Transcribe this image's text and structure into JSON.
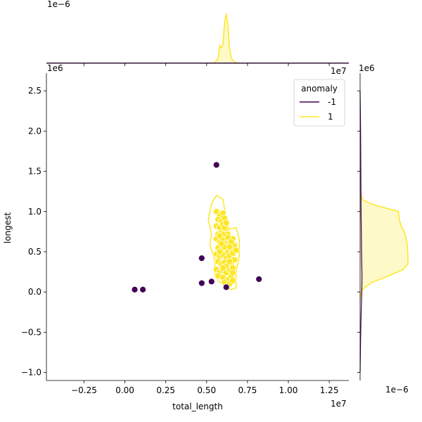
{
  "chart_data": {
    "type": "scatter",
    "kind": "seaborn jointplot with marginal KDE",
    "xlabel": "total_length",
    "ylabel": "longest",
    "x_offset_label": "1e7",
    "y_offset_label": "1e6",
    "top_marginal_offset_label": "1e−6",
    "top_marginal_x_offset_label": "1e7",
    "right_marginal_offset_label": "1e−6",
    "right_marginal_y_offset_label": "1e6",
    "xlim": [
      -0.48,
      1.37
    ],
    "ylim": [
      -1.1,
      2.72
    ],
    "x_ticks": [
      -0.25,
      0.0,
      0.25,
      0.5,
      0.75,
      1.0,
      1.25
    ],
    "x_tick_labels": [
      "−0.25",
      "0.00",
      "0.25",
      "0.50",
      "0.75",
      "1.00",
      "1.25"
    ],
    "y_ticks": [
      -1.0,
      -0.5,
      0.0,
      0.5,
      1.0,
      1.5,
      2.0,
      2.5
    ],
    "y_tick_labels": [
      "−1.0",
      "−0.5",
      "0.0",
      "0.5",
      "1.0",
      "1.5",
      "2.0",
      "2.5"
    ],
    "grid": false,
    "legend": {
      "title": "anomaly",
      "placement": "top-right",
      "entries": [
        {
          "label": "-1",
          "color": "#440154"
        },
        {
          "label": "1",
          "color": "#fde725"
        }
      ]
    },
    "colors": {
      "anomaly": "#440154",
      "normal": "#fde725",
      "normal_fill": "#fde725"
    },
    "series": [
      {
        "name": "-1",
        "points": [
          [
            0.06,
            0.03
          ],
          [
            0.11,
            0.03
          ],
          [
            0.47,
            0.42
          ],
          [
            0.47,
            0.11
          ],
          [
            0.53,
            0.13
          ],
          [
            0.56,
            1.58
          ],
          [
            0.62,
            0.06
          ],
          [
            0.82,
            0.16
          ]
        ]
      },
      {
        "name": "1",
        "points": [
          [
            0.56,
            1.0
          ],
          [
            0.58,
            0.95
          ],
          [
            0.6,
            0.98
          ],
          [
            0.57,
            0.9
          ],
          [
            0.59,
            0.88
          ],
          [
            0.61,
            0.92
          ],
          [
            0.56,
            0.82
          ],
          [
            0.58,
            0.8
          ],
          [
            0.6,
            0.84
          ],
          [
            0.62,
            0.78
          ],
          [
            0.57,
            0.72
          ],
          [
            0.59,
            0.74
          ],
          [
            0.61,
            0.7
          ],
          [
            0.63,
            0.72
          ],
          [
            0.56,
            0.66
          ],
          [
            0.58,
            0.62
          ],
          [
            0.6,
            0.65
          ],
          [
            0.62,
            0.6
          ],
          [
            0.64,
            0.63
          ],
          [
            0.66,
            0.66
          ],
          [
            0.57,
            0.55
          ],
          [
            0.59,
            0.52
          ],
          [
            0.61,
            0.56
          ],
          [
            0.63,
            0.5
          ],
          [
            0.65,
            0.54
          ],
          [
            0.67,
            0.58
          ],
          [
            0.56,
            0.47
          ],
          [
            0.58,
            0.44
          ],
          [
            0.6,
            0.46
          ],
          [
            0.62,
            0.42
          ],
          [
            0.64,
            0.45
          ],
          [
            0.66,
            0.48
          ],
          [
            0.68,
            0.52
          ],
          [
            0.57,
            0.38
          ],
          [
            0.59,
            0.35
          ],
          [
            0.61,
            0.37
          ],
          [
            0.63,
            0.33
          ],
          [
            0.65,
            0.36
          ],
          [
            0.67,
            0.4
          ],
          [
            0.56,
            0.28
          ],
          [
            0.58,
            0.25
          ],
          [
            0.6,
            0.27
          ],
          [
            0.62,
            0.24
          ],
          [
            0.64,
            0.28
          ],
          [
            0.66,
            0.3
          ],
          [
            0.57,
            0.2
          ],
          [
            0.6,
            0.18
          ],
          [
            0.63,
            0.15
          ],
          [
            0.65,
            0.2
          ],
          [
            0.61,
            0.12
          ],
          [
            0.64,
            0.1
          ],
          [
            0.66,
            0.14
          ],
          [
            0.59,
            0.6
          ],
          [
            0.61,
            0.8
          ],
          [
            0.63,
            0.68
          ],
          [
            0.65,
            0.62
          ],
          [
            0.6,
            0.72
          ],
          [
            0.62,
            0.86
          ],
          [
            0.64,
            0.56
          ],
          [
            0.58,
            0.5
          ],
          [
            0.62,
            0.32
          ],
          [
            0.64,
            0.38
          ],
          [
            0.6,
            0.3
          ],
          [
            0.66,
            0.24
          ],
          [
            0.58,
            0.7
          ]
        ]
      }
    ],
    "contour_anomaly_1": [
      [
        0.56,
        1.2
      ],
      [
        0.53,
        1.1
      ],
      [
        0.51,
        0.9
      ],
      [
        0.53,
        0.72
      ],
      [
        0.52,
        0.58
      ],
      [
        0.55,
        0.4
      ],
      [
        0.55,
        0.22
      ],
      [
        0.57,
        0.14
      ],
      [
        0.61,
        0.08
      ],
      [
        0.65,
        0.03
      ],
      [
        0.68,
        0.05
      ],
      [
        0.68,
        0.25
      ],
      [
        0.7,
        0.45
      ],
      [
        0.7,
        0.65
      ],
      [
        0.68,
        0.8
      ],
      [
        0.64,
        0.78
      ],
      [
        0.62,
        0.9
      ],
      [
        0.6,
        1.15
      ]
    ],
    "top_marginal": {
      "normal_kde": [
        [
          0.52,
          0.0
        ],
        [
          0.55,
          0.01
        ],
        [
          0.57,
          0.1
        ],
        [
          0.58,
          0.35
        ],
        [
          0.59,
          0.3
        ],
        [
          0.6,
          0.38
        ],
        [
          0.61,
          0.8
        ],
        [
          0.62,
          0.98
        ],
        [
          0.63,
          0.75
        ],
        [
          0.64,
          0.3
        ],
        [
          0.65,
          0.12
        ],
        [
          0.66,
          0.05
        ],
        [
          0.68,
          0.01
        ],
        [
          0.7,
          0.0
        ]
      ],
      "anomaly_kde_line": [
        [
          -0.48,
          0.0
        ],
        [
          1.37,
          0.0
        ]
      ]
    },
    "right_marginal": {
      "normal_kde": [
        [
          1.25,
          0.0
        ],
        [
          1.15,
          0.05
        ],
        [
          1.1,
          0.2
        ],
        [
          1.05,
          0.5
        ],
        [
          1.0,
          0.8
        ],
        [
          0.9,
          0.82
        ],
        [
          0.82,
          0.86
        ],
        [
          0.75,
          0.92
        ],
        [
          0.65,
          0.97
        ],
        [
          0.55,
          0.99
        ],
        [
          0.45,
          1.0
        ],
        [
          0.35,
          1.0
        ],
        [
          0.28,
          0.9
        ],
        [
          0.2,
          0.6
        ],
        [
          0.12,
          0.25
        ],
        [
          0.05,
          0.08
        ],
        [
          0.0,
          0.02
        ],
        [
          -0.1,
          0.0
        ]
      ],
      "anomaly_kde": [
        [
          2.5,
          0.0
        ],
        [
          2.0,
          0.01
        ],
        [
          1.5,
          0.015
        ],
        [
          1.0,
          0.02
        ],
        [
          0.5,
          0.03
        ],
        [
          0.2,
          0.04
        ],
        [
          0.0,
          0.035
        ],
        [
          -0.3,
          0.02
        ],
        [
          -0.6,
          0.01
        ],
        [
          -1.0,
          0.0
        ]
      ]
    }
  }
}
